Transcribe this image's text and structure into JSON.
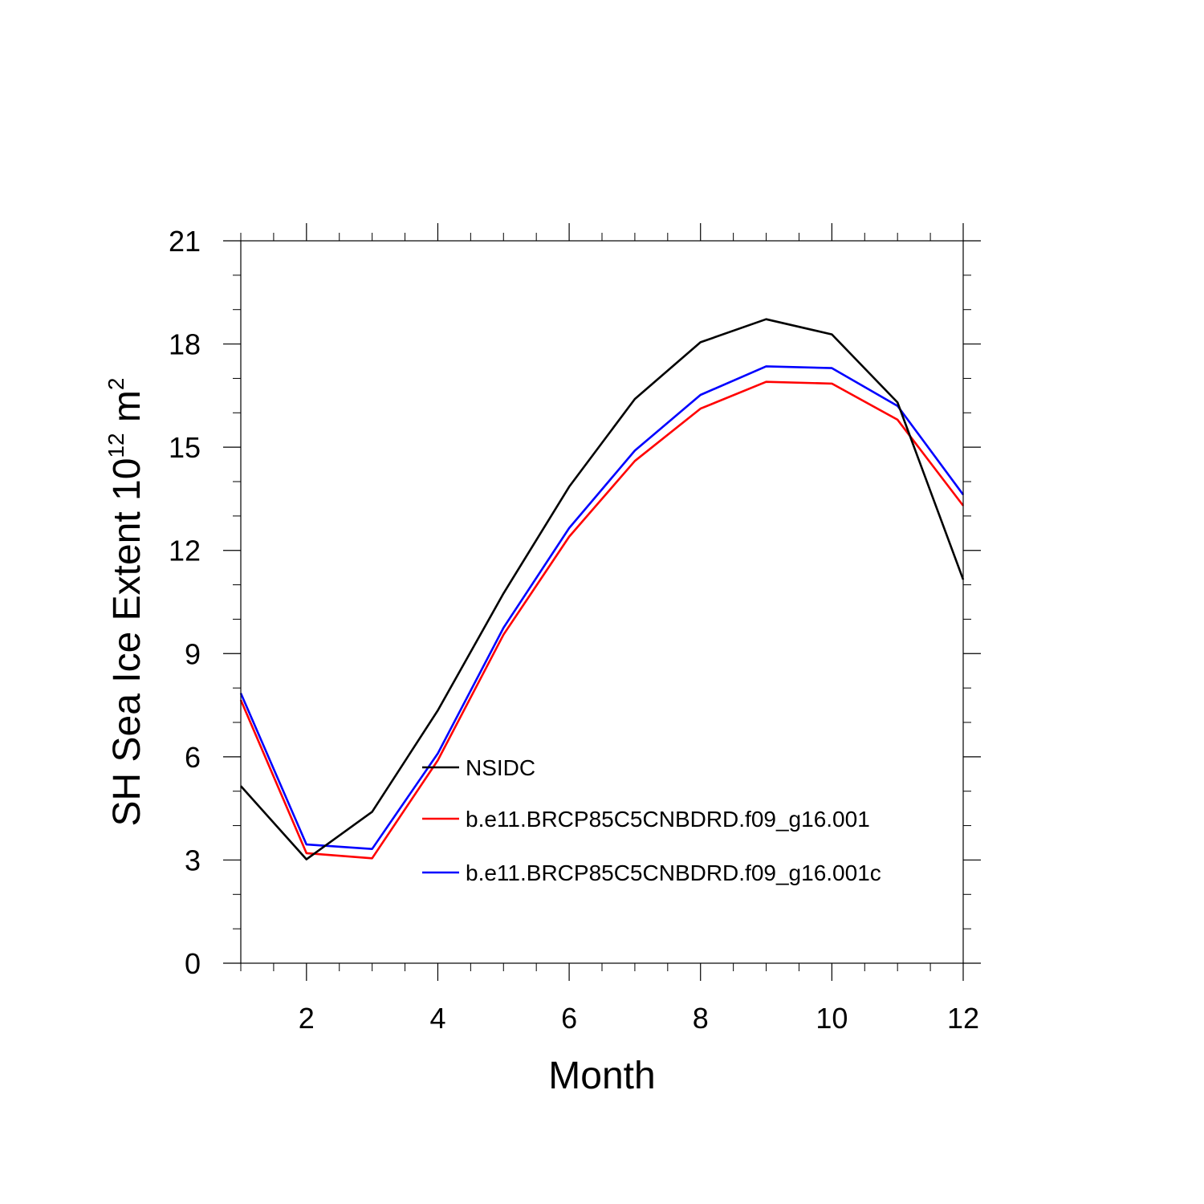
{
  "chart_data": {
    "type": "line",
    "xlabel": "Month",
    "ylabel_main": "SH Sea Ice Extent 10",
    "ylabel_exp1": "12",
    "ylabel_mid": " m",
    "ylabel_exp2": "2",
    "xlim": [
      1,
      12
    ],
    "ylim": [
      0,
      21
    ],
    "xticks": [
      2,
      4,
      6,
      8,
      10,
      12
    ],
    "yticks": [
      0,
      3,
      6,
      9,
      12,
      15,
      18,
      21
    ],
    "x": [
      1,
      2,
      3,
      4,
      5,
      6,
      7,
      8,
      9,
      10,
      11,
      12
    ],
    "series": [
      {
        "name": "NSIDC",
        "color": "#000000",
        "values": [
          5.15,
          3.02,
          4.4,
          7.35,
          10.75,
          13.85,
          16.4,
          18.05,
          18.72,
          18.28,
          16.3,
          11.15
        ]
      },
      {
        "name": "b.e11.BRCP85C5CNBDRD.f09_g16.001",
        "color": "#ff0000",
        "values": [
          7.65,
          3.2,
          3.05,
          5.9,
          9.55,
          12.4,
          14.6,
          16.12,
          16.9,
          16.85,
          15.8,
          13.3
        ]
      },
      {
        "name": "b.e11.BRCP85C5CNBDRD.f09_g16.001c",
        "color": "#0000ff",
        "values": [
          7.85,
          3.45,
          3.32,
          6.1,
          9.75,
          12.65,
          14.9,
          16.52,
          17.35,
          17.3,
          16.2,
          13.62
        ]
      }
    ],
    "legend_position": "center"
  }
}
